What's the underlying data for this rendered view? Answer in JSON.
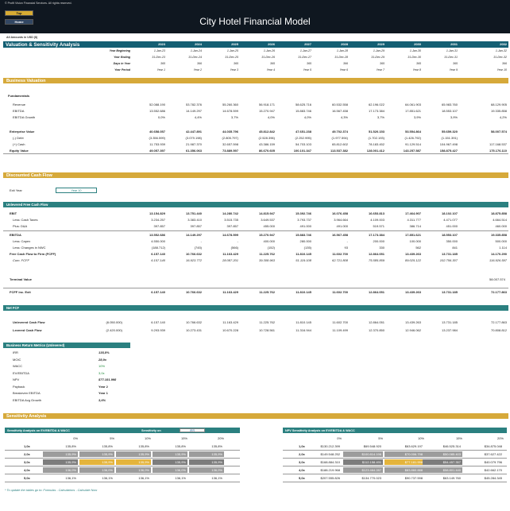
{
  "header": {
    "copyright": "© Profit Vision Financial Services. All rights reserved.",
    "top_label": "Top",
    "home_label": "Home",
    "title": "City Hotel Financial Model"
  },
  "amounts_note": "All Amounts in  USD ($)",
  "section_title": "Valuation & Sensitivity Analysis",
  "years": [
    "2023",
    "2024",
    "2025",
    "2026",
    "2027",
    "2028",
    "2029",
    "2030",
    "2031",
    "2032"
  ],
  "period_rows": [
    {
      "label": "Year Beginning",
      "values": [
        "1-Jan-23",
        "1-Jan-24",
        "1-Jan-25",
        "1-Jan-26",
        "1-Jan-27",
        "1-Jan-28",
        "1-Jan-29",
        "1-Jan-30",
        "1-Jan-31",
        "1-Jan-32"
      ]
    },
    {
      "label": "Year Ending",
      "values": [
        "31-Dec-23",
        "31-Dec-24",
        "31-Dec-25",
        "31-Dec-26",
        "31-Dec-27",
        "31-Dec-28",
        "31-Dec-29",
        "31-Dec-30",
        "31-Dec-31",
        "31-Dec-32"
      ]
    },
    {
      "label": "Days in Year",
      "values": [
        "365",
        "366",
        "365",
        "365",
        "365",
        "366",
        "365",
        "365",
        "365",
        "366"
      ]
    },
    {
      "label": "Year Period",
      "values": [
        "Year 1",
        "Year 2",
        "Year 3",
        "Year 4",
        "Year 5",
        "Year 6",
        "Year 7",
        "Year 8",
        "Year 9",
        "Year 10"
      ]
    }
  ],
  "business_valuation": {
    "title": "Business Valuation",
    "fundamentals_label": "Fundamentals",
    "rows": [
      {
        "label": "Revenue",
        "values": [
          "52.088.190",
          "53.782.376",
          "55.260.360",
          "56.918.171",
          "58.625.716",
          "60.532.558",
          "62.196.022",
          "64.061.903",
          "65.983.760",
          "68.129.905"
        ]
      },
      {
        "label": "EBITDA",
        "values": [
          "13.552.686",
          "14.149.297",
          "14.678.599",
          "15.270.947",
          "15.883.746",
          "16.567.458",
          "17.173.384",
          "17.851.621",
          "18.553.107",
          "19.335.858"
        ]
      },
      {
        "label": "EBITDA Growth",
        "values": [
          "0,0%",
          "4,4%",
          "3,7%",
          "4,0%",
          "4,0%",
          "4,3%",
          "3,7%",
          "3,9%",
          "3,9%",
          "4,2%"
        ]
      }
    ],
    "ev_rows": [
      {
        "label": "Enterprise Value",
        "bold": true,
        "values": [
          "40.658.057",
          "42.447.891",
          "44.035.796",
          "45.812.842",
          "47.651.238",
          "49.702.374",
          "51.520.153",
          "53.554.864",
          "55.659.320",
          "58.007.574"
        ]
      },
      {
        "label": "(-) Debt",
        "values": [
          "(3.356.599)",
          "(3.079.198)",
          "(2.805.797)",
          "(2.528.396)",
          "(2.252.995)",
          "(1.977.594)",
          "(1.702.193)",
          "(1.426.792)",
          "(1.151.391)",
          ""
        ]
      },
      {
        "label": "(+) Cash",
        "values": [
          "11.753.939",
          "21.987.370",
          "32.657.598",
          "43.386.159",
          "54.703.103",
          "65.812.602",
          "78.183.452",
          "91.129.514",
          "104.967.498",
          "117.168.537"
        ]
      },
      {
        "label": "Equity Value",
        "bold": true,
        "values": [
          "49.057.397",
          "61.356.063",
          "73.889.597",
          "86.670.605",
          "100.101.347",
          "113.537.382",
          "128.001.412",
          "143.257.587",
          "158.875.427",
          "175.176.110"
        ]
      }
    ]
  },
  "dcf": {
    "title": "Discounted Cash Flow",
    "exit_label": "Exit Year",
    "exit_value": "Year 10",
    "ufcf_title": "Unlevered Free Cash Flow",
    "rows1": [
      {
        "label": "EBIT",
        "bold": true,
        "values": [
          "13.154.829",
          "13.751.440",
          "14.280.742",
          "14.815.947",
          "15.392.746",
          "16.076.458",
          "16.653.813",
          "17.464.907",
          "18.102.107",
          "18.875.858"
        ]
      },
      {
        "label": "Less: Cash Taxes",
        "values": [
          "3.234.257",
          "3.383.410",
          "3.515.735",
          "3.649.537",
          "3.793.737",
          "3.964.664",
          "4.109.003",
          "4.311.777",
          "4.471.077",
          "4.664.514"
        ]
      },
      {
        "label": "Plus: D&A",
        "values": [
          "397.857",
          "397.857",
          "397.857",
          "455.000",
          "491.000",
          "491.000",
          "519.571",
          "386.714",
          "451.000",
          "460.000"
        ]
      }
    ],
    "rows2": [
      {
        "label": "EBITDA",
        "bold": true,
        "values": [
          "13.552.686",
          "14.149.297",
          "14.678.599",
          "15.270.947",
          "15.883.746",
          "16.567.458",
          "17.173.384",
          "17.851.621",
          "18.553.107",
          "19.335.858"
        ]
      },
      {
        "label": "Less: Capex",
        "values": [
          "4.550.000",
          "-",
          "-",
          "400.000",
          "280.000",
          "-",
          "200.000",
          "100.000",
          "350.000",
          "500.000"
        ]
      },
      {
        "label": "Less: Changes in NWC",
        "values": [
          "(188.712)",
          "(745)",
          "(566)",
          "(152)",
          "(135)",
          "93",
          "330",
          "562",
          "841",
          "1.114"
        ]
      },
      {
        "label": "Free Cash Flow to Firm (FCFF)",
        "bold": true,
        "values": [
          "6.157.140",
          "10.766.632",
          "11.163.429",
          "11.225.762",
          "11.810.145",
          "11.602.700",
          "12.864.051",
          "13.439.263",
          "13.731.185",
          "14.170.290"
        ]
      },
      {
        "label": "Cum. FCFF",
        "italic": true,
        "values": [
          "6.157.140",
          "16.923.772",
          "28.087.201",
          "39.308.963",
          "51.119.108",
          "62.721.808",
          "75.585.859",
          "89.025.122",
          "102.756.307",
          "116.926.597"
        ]
      }
    ],
    "terminal_label": "Terminal Value",
    "terminal_value": "58.007.574",
    "fcff_exit_label": "FCFF inc. Exit",
    "fcff_exit_values": [
      "6.157.140",
      "10.766.632",
      "11.163.429",
      "11.225.762",
      "11.810.145",
      "11.602.700",
      "12.864.051",
      "13.439.263",
      "13.731.185",
      "72.177.863"
    ]
  },
  "net_fcf": {
    "title": "Net FCF",
    "initial_label": "",
    "rows": [
      {
        "label": "Unlevered Cash Flow",
        "initial": "(6.050.000)",
        "values": [
          "6.157.140",
          "10.766.632",
          "11.163.429",
          "11.225.762",
          "11.810.145",
          "11.602.700",
          "12.864.051",
          "13.439.263",
          "13.731.185",
          "72.177.863"
        ]
      },
      {
        "label": "Levered Cash Flow",
        "initial": "(2.420.000)",
        "values": [
          "9.293.939",
          "10.273.431",
          "10.670.228",
          "10.728.561",
          "11.316.944",
          "11.109.499",
          "12.370.850",
          "12.946.062",
          "13.237.984",
          "70.808.812"
        ]
      }
    ]
  },
  "metrics": {
    "title": "Business Return Metrics (Unlevered)",
    "rows": [
      {
        "label": "IRR",
        "value": "135,8%",
        "style": "bi"
      },
      {
        "label": "MOIC",
        "value": "28,9x",
        "style": "bi"
      },
      {
        "label": "WACC",
        "value": "10%",
        "style": "green"
      },
      {
        "label": "EV/EBITDA",
        "value": "3,0x",
        "style": "green"
      },
      {
        "label": "NPV",
        "value": "$77.181.998",
        "style": "bi"
      },
      {
        "label": "Payback",
        "value": "Year 2",
        "style": "b"
      },
      {
        "label": "Breakeven EBITDA",
        "value": "Year 1",
        "style": "b"
      },
      {
        "label": "EBITDA Avg Growth",
        "value": "3,6%",
        "style": "bi"
      }
    ]
  },
  "sensitivity": {
    "title": "Sensitivity Analysis",
    "left_title": "Sensitivity Analysis on EV/EBITDA & WACC",
    "sens_on_label": "Sensitivity on",
    "sens_on_value": "IRR",
    "right_title": "NPV Sensitivity Analysis on EV/EBITDA & WACC",
    "cols": [
      "0%",
      "5%",
      "10%",
      "15%",
      "20%"
    ],
    "row_labels": [
      "1,0x",
      "2,0x",
      "3,0x",
      "4,0x",
      "5,0x"
    ],
    "left_values": [
      [
        "135,8%",
        "135,8%",
        "135,8%",
        "135,8%",
        "135,8%"
      ],
      [
        "135,9%",
        "135,9%",
        "135,9%",
        "135,9%",
        "135,9%"
      ],
      [
        "135,9%",
        "135,9%",
        "135,9%",
        "135,9%",
        "135,9%"
      ],
      [
        "136,0%",
        "136,0%",
        "136,0%",
        "136,0%",
        "136,0%"
      ],
      [
        "136,1%",
        "136,1%",
        "136,1%",
        "136,1%",
        "136,1%"
      ]
    ],
    "right_values": [
      [
        "$130.212.399",
        "$69.548.920",
        "$63.629.197",
        "$46.525.314",
        "$34.875.048"
      ],
      [
        "$149.548.252",
        "$100.814.196",
        "$70.006.798",
        "$50.085.403",
        "$37.627.422"
      ],
      [
        "$168.884.310",
        "$112.158.491",
        "$77.181.998",
        "$54.457.357",
        "$40.079.796"
      ],
      [
        "$188.219.968",
        "$123.464.287",
        "$83.860.888",
        "$58.801.440",
        "$42.662.170"
      ],
      [
        "$207.555.826",
        "$134.770.023",
        "$90.737.598",
        "$63.149.760",
        "$45.284.345"
      ]
    ]
  },
  "footnote": "* To update the tables go to: Formulas - Calculations - Calculate Now"
}
